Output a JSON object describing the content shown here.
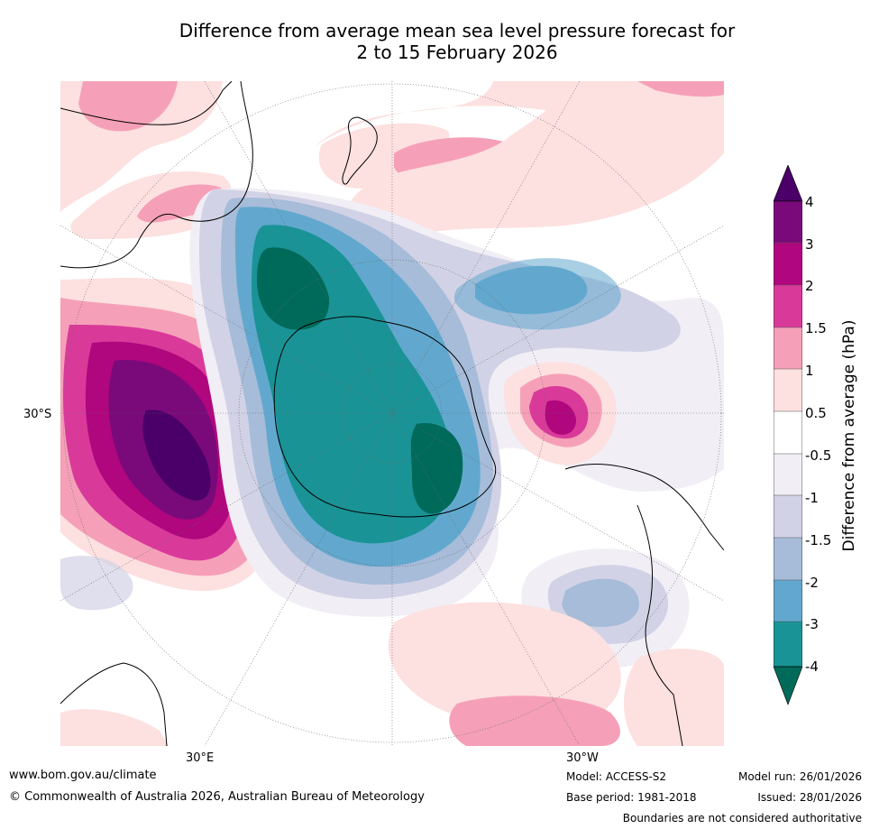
{
  "title_line1": "Difference from average mean sea level pressure forecast for",
  "title_line2": "2 to 15 February 2026",
  "map": {
    "lat_label": "30°S",
    "lon_label_left": "30°E",
    "lon_label_right": "30°W",
    "land_outline_color": "#000000",
    "graticule_color": "#666666"
  },
  "colorbar": {
    "label": "Difference from average (hPa)",
    "ticks": [
      "4",
      "3",
      "2",
      "1.5",
      "1",
      "0.5",
      "-0.5",
      "-1",
      "-1.5",
      "-2",
      "-3",
      "-4"
    ],
    "colors": {
      "over": "#4a0068",
      "b_3_4": "#7a0a7a",
      "b_2_3": "#b0067e",
      "b_1_5_2": "#d93a9a",
      "b_1_1_5": "#f5a0b8",
      "b_0_5_1": "#fde0e0",
      "b_m0_5_0_5": "#ffffff",
      "b_m1_m0_5": "#f1eef5",
      "b_m1_5_m1": "#d2d2e6",
      "b_m2_m1_5": "#a6bcd9",
      "b_m3_m2": "#62a8ce",
      "b_m4_m3": "#1a9396",
      "under": "#006a5a"
    }
  },
  "footer": {
    "website": "www.bom.gov.au/climate",
    "copyright": "© Commonwealth of Australia 2026, Australian Bureau of Meteorology",
    "model": "Model: ACCESS-S2",
    "base_period": "Base period: 1981-2018",
    "model_run": "Model run: 26/01/2026",
    "issued": "Issued: 28/01/2026",
    "disclaimer": "Boundaries are not considered authoritative"
  }
}
